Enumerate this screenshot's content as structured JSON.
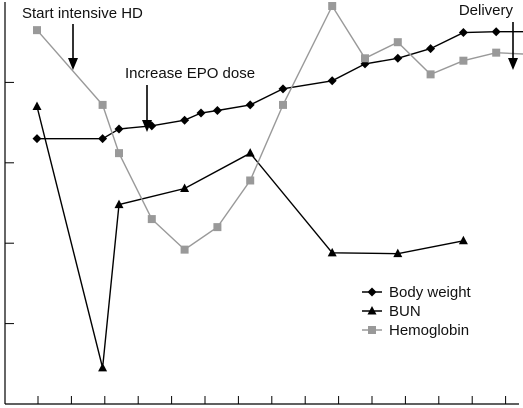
{
  "chart_data": {
    "type": "line",
    "x": [
      1,
      2,
      3,
      4,
      5,
      6,
      7,
      8,
      9,
      10,
      11,
      12,
      13,
      14,
      15,
      16,
      17,
      18,
      19,
      20,
      21,
      22,
      23,
      24,
      25,
      26,
      27,
      28,
      29,
      30,
      31,
      32,
      33,
      34,
      35,
      36,
      37,
      38,
      39,
      40,
      41,
      42,
      43,
      44,
      45,
      46,
      47,
      48,
      49,
      50,
      51,
      52,
      53,
      54,
      55,
      56,
      57,
      58,
      59,
      60,
      61
    ],
    "xlim": [
      0,
      61
    ],
    "ylim": [
      0,
      5
    ],
    "grid": false,
    "legend_position": "bottom-right",
    "series": [
      {
        "name": "Body weight",
        "marker": "diamond",
        "color": "#000000",
        "points": [
          [
            0,
            3.3
          ],
          [
            8,
            3.3
          ],
          [
            10,
            3.42
          ],
          [
            14,
            3.46
          ],
          [
            18,
            3.53
          ],
          [
            20,
            3.62
          ],
          [
            22,
            3.65
          ],
          [
            26,
            3.72
          ],
          [
            30,
            3.92
          ],
          [
            36,
            4.02
          ],
          [
            40,
            4.23
          ],
          [
            44,
            4.3
          ],
          [
            48,
            4.42
          ],
          [
            52,
            4.62
          ],
          [
            56,
            4.63
          ],
          [
            60,
            4.63
          ]
        ]
      },
      {
        "name": "BUN",
        "marker": "triangle",
        "color": "#000000",
        "points": [
          [
            0,
            3.7
          ],
          [
            8,
            0.45
          ],
          [
            10,
            2.48
          ],
          [
            18,
            2.68
          ],
          [
            26,
            3.12
          ],
          [
            36,
            1.88
          ],
          [
            44,
            1.87
          ],
          [
            52,
            2.03
          ]
        ]
      },
      {
        "name": "Hemoglobin",
        "marker": "square",
        "color": "#999999",
        "points": [
          [
            0,
            4.65
          ],
          [
            8,
            3.72
          ],
          [
            10,
            3.12
          ],
          [
            14,
            2.3
          ],
          [
            18,
            1.92
          ],
          [
            22,
            2.2
          ],
          [
            26,
            2.78
          ],
          [
            30,
            3.72
          ],
          [
            36,
            4.95
          ],
          [
            40,
            4.3
          ],
          [
            44,
            4.5
          ],
          [
            48,
            4.1
          ],
          [
            52,
            4.27
          ],
          [
            56,
            4.37
          ],
          [
            60,
            4.35
          ]
        ]
      }
    ],
    "annotations": [
      {
        "text": "Start intensive HD",
        "x": 4
      },
      {
        "text": "Increase EPO dose",
        "x": 13
      },
      {
        "text": "Delivery",
        "x": 60
      }
    ]
  }
}
